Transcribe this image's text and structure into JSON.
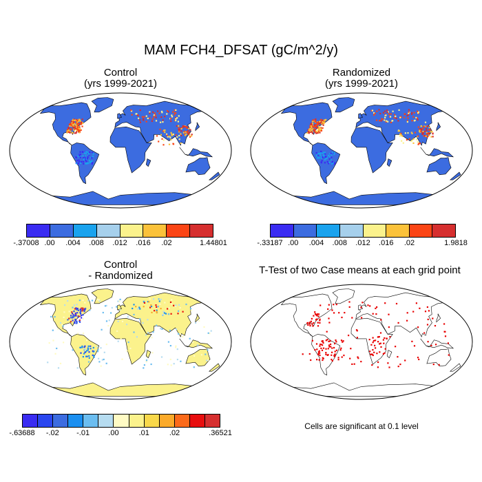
{
  "figure": {
    "title": "MAM FCH4_DFSAT (gC/m^2/y)",
    "note": "Cells are significant at 0.1 level"
  },
  "panels": {
    "control": {
      "title": "Control",
      "subtitle": "(yrs 1999-2021)",
      "colors": [
        "#3a2cf2",
        "#3c6ce0",
        "#1aa3ee",
        "#a6d0ec",
        "#fbf28c",
        "#fbc23a",
        "#fb4515",
        "#d62f2f"
      ],
      "ticks": [
        "-.37008",
        ".00",
        ".004",
        ".008",
        ".012",
        ".016",
        ".02",
        "1.44801"
      ]
    },
    "randomized": {
      "title": "Randomized",
      "subtitle": "(yrs 1999-2021)",
      "colors": [
        "#3a2cf2",
        "#3c6ce0",
        "#1aa3ee",
        "#a6d0ec",
        "#fbf28c",
        "#fbc23a",
        "#fb4515",
        "#d62f2f"
      ],
      "ticks": [
        "-.33187",
        ".00",
        ".004",
        ".008",
        ".012",
        ".016",
        ".02",
        "1.9818"
      ]
    },
    "difference": {
      "title": "Control",
      "subtitle": "- Randomized",
      "colors": [
        "#3a2cf2",
        "#2a46ef",
        "#3c6ce0",
        "#1a8ff0",
        "#6bbdf0",
        "#b6dcf0",
        "#fffbc4",
        "#fbf28c",
        "#f8d84a",
        "#fbaa2a",
        "#fb6a1a",
        "#e80e0e",
        "#d62f2f"
      ],
      "ticks": [
        "-.63688",
        "-.02",
        "-.01",
        ".00",
        ".01",
        ".02",
        ".36521"
      ]
    },
    "ttest": {
      "title": "T-Test of two Case means at each grid point"
    }
  }
}
